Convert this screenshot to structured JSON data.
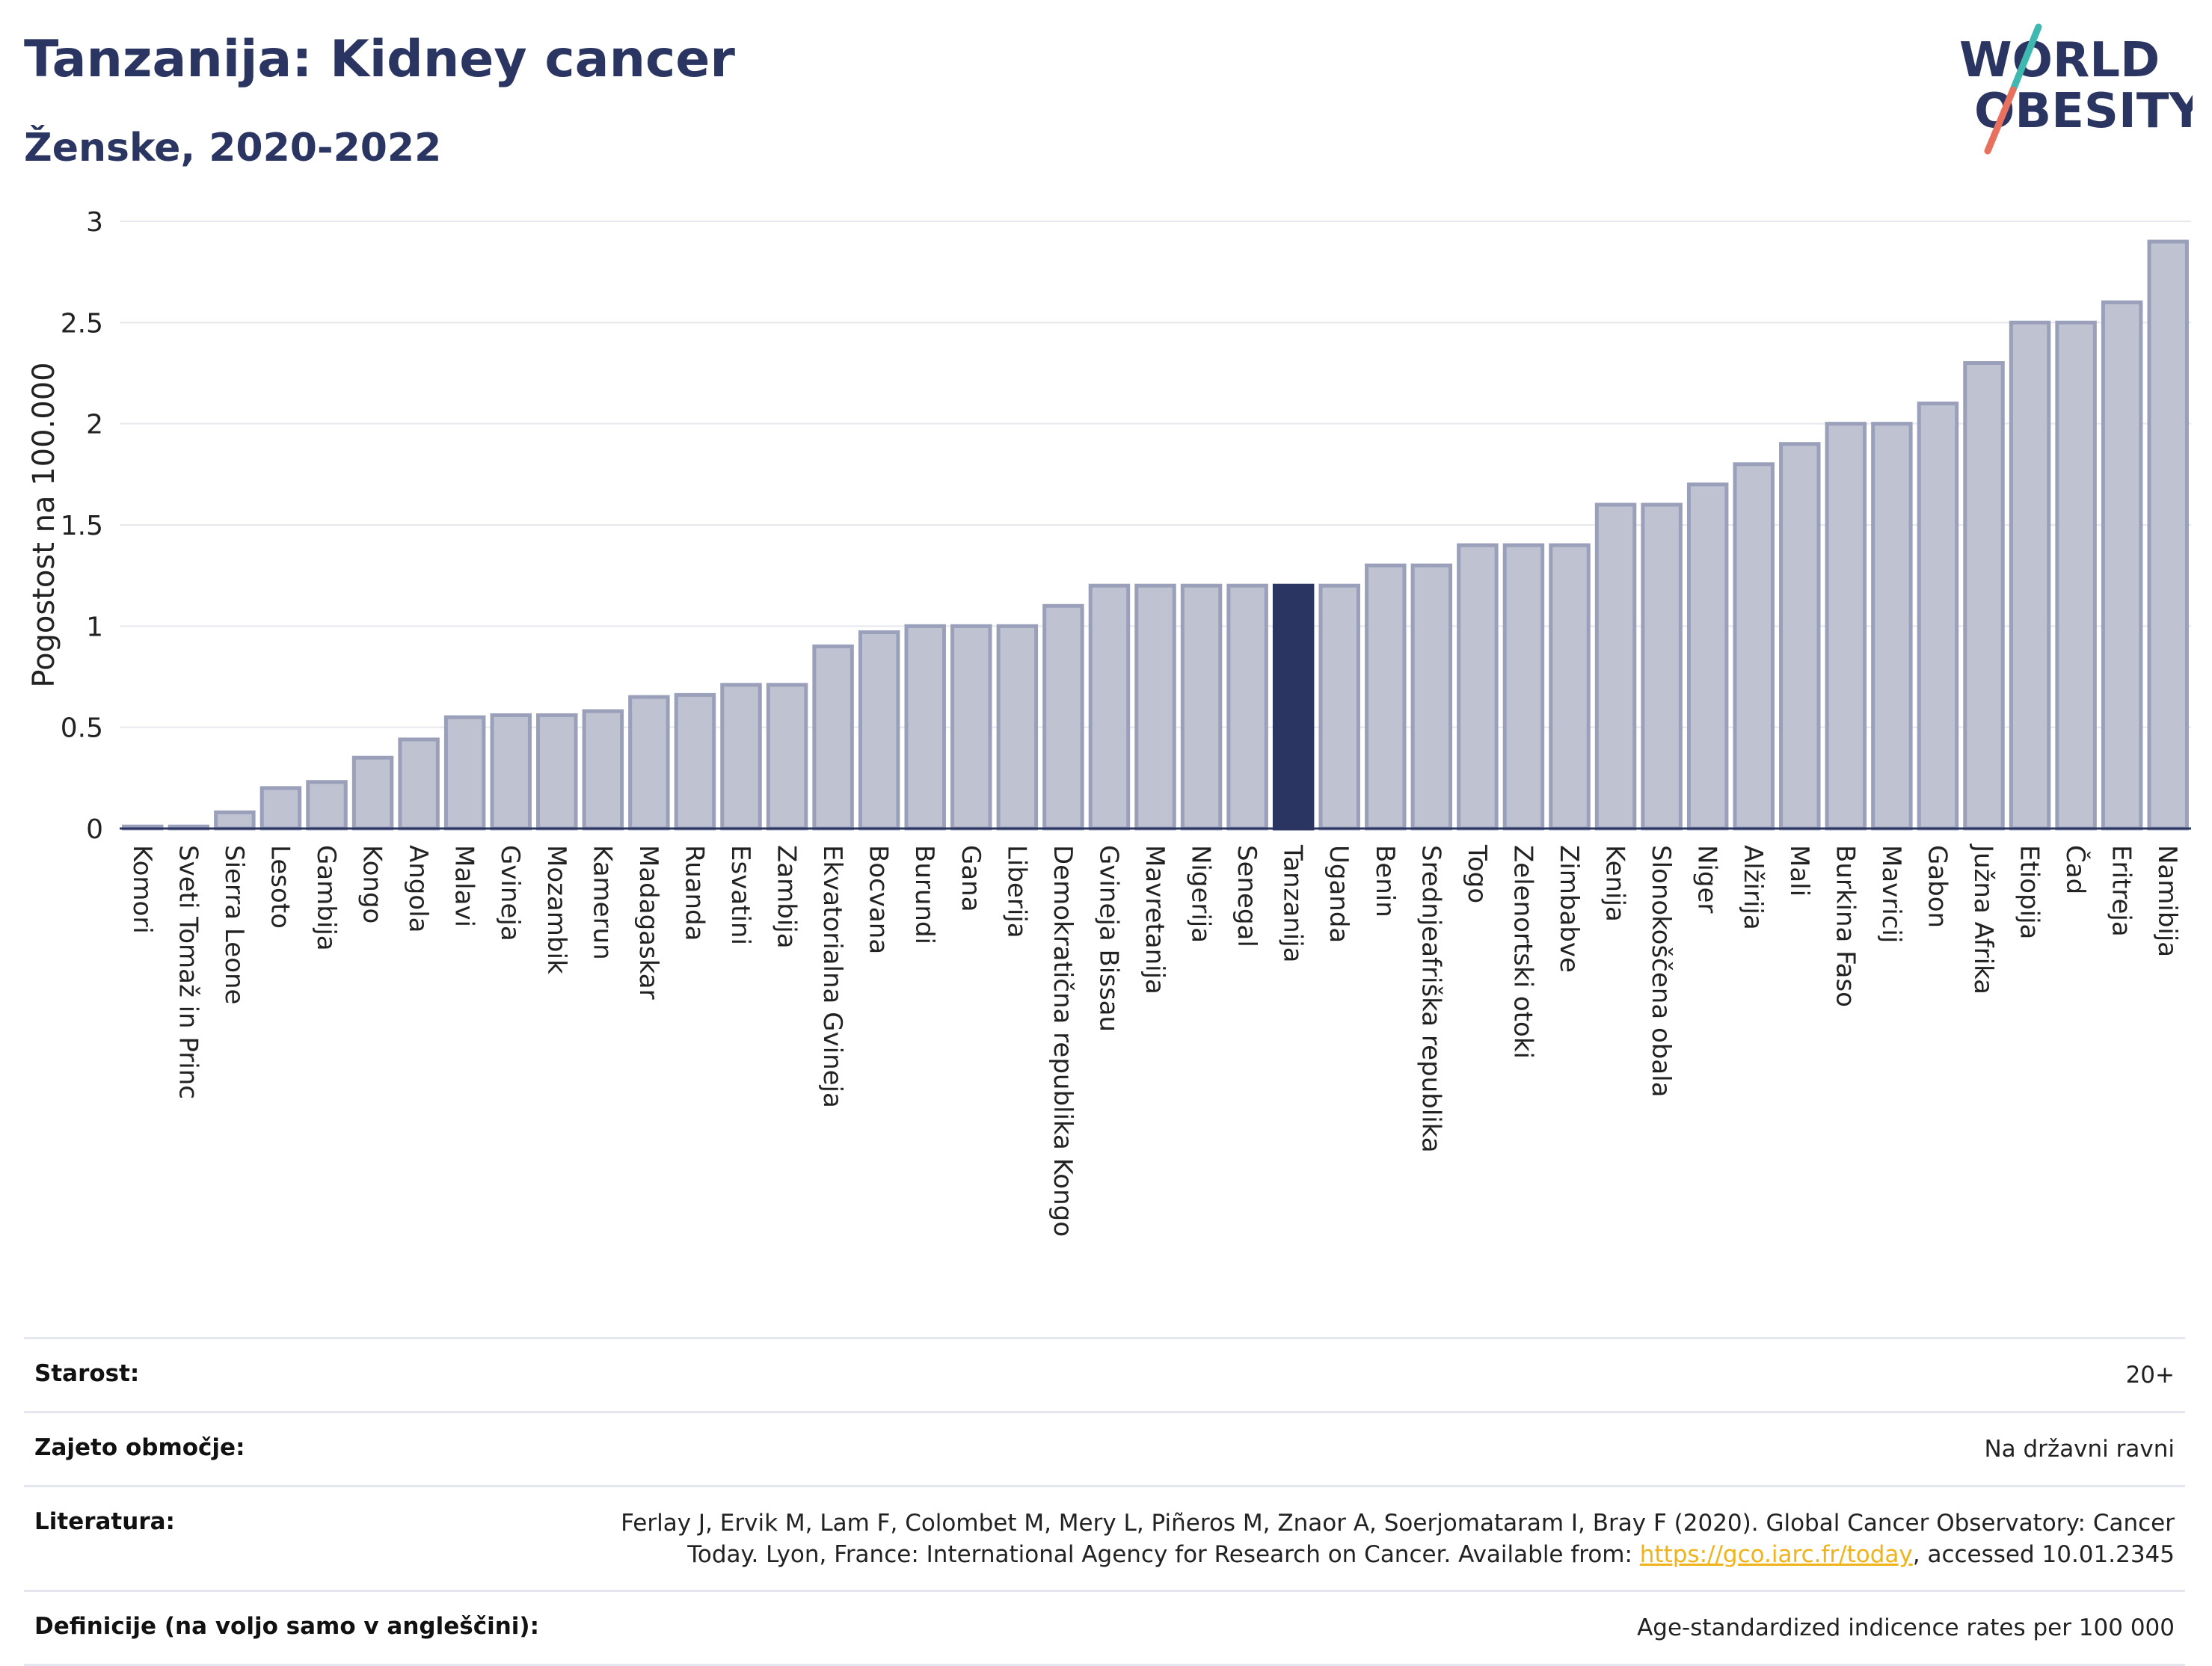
{
  "header": {
    "title": "Tanzanija: Kidney cancer",
    "subtitle": "Ženske, 2020-2022"
  },
  "logo": {
    "line1": "WORLD",
    "line2": "OBESITY"
  },
  "colors": {
    "bar": "#bfc2d0",
    "bar_stroke": "#9a9fba",
    "highlight": "#2b3561",
    "title": "#2b3561",
    "link": "#f0b31a"
  },
  "chart_data": {
    "type": "bar",
    "ylabel": "Pogostost na 100.000",
    "ylim": [
      0,
      3
    ],
    "yticks": [
      0,
      0.5,
      1,
      1.5,
      2,
      2.5,
      3
    ],
    "ytick_labels": [
      "0",
      "0.5",
      "1",
      "1.5",
      "2",
      "2.5",
      "3"
    ],
    "grid": true,
    "highlight": "Tanzanija",
    "categories": [
      "Komori",
      "Sveti Tomaž in Princ",
      "Sierra Leone",
      "Lesoto",
      "Gambija",
      "Kongo",
      "Angola",
      "Malavi",
      "Gvineja",
      "Mozambik",
      "Kamerun",
      "Madagaskar",
      "Ruanda",
      "Esvatini",
      "Zambija",
      "Ekvatorialna Gvineja",
      "Bocvana",
      "Burundi",
      "Gana",
      "Liberija",
      "Demokratična republika Kongo",
      "Gvineja Bissau",
      "Mavretanija",
      "Nigerija",
      "Senegal",
      "Tanzanija",
      "Uganda",
      "Benin",
      "Srednjeafriška republika",
      "Togo",
      "Zelenortski otoki",
      "Zimbabve",
      "Kenija",
      "Slonokoščena obala",
      "Niger",
      "Alžirija",
      "Mali",
      "Burkina Faso",
      "Mavricij",
      "Gabon",
      "Južna Afrika",
      "Etiopija",
      "Čad",
      "Eritreja",
      "Namibija"
    ],
    "values": [
      0.01,
      0.01,
      0.08,
      0.2,
      0.23,
      0.35,
      0.44,
      0.55,
      0.56,
      0.56,
      0.58,
      0.65,
      0.66,
      0.71,
      0.71,
      0.9,
      0.97,
      1.0,
      1.0,
      1.0,
      1.1,
      1.2,
      1.2,
      1.2,
      1.2,
      1.2,
      1.2,
      1.3,
      1.3,
      1.4,
      1.4,
      1.4,
      1.6,
      1.6,
      1.7,
      1.8,
      1.9,
      2.0,
      2.0,
      2.1,
      2.3,
      2.5,
      2.5,
      2.6,
      2.9
    ]
  },
  "info": [
    {
      "label": "Starost:",
      "value": "20+"
    },
    {
      "label": "Zajeto območje:",
      "value": "Na državni ravni"
    },
    {
      "label": "Literatura:",
      "value_pre": "Ferlay J, Ervik M, Lam F, Colombet M, Mery L, Piñeros M, Znaor A, Soerjomataram I, Bray F (2020). Global Cancer Observatory: Cancer Today. Lyon, France: International Agency for Research on Cancer. Available from: ",
      "link": "https://gco.iarc.fr/today",
      "value_post": ", accessed 10.01.2345"
    },
    {
      "label": "Definicije (na voljo samo v angleščini):",
      "value": "Age-standardized indicence rates per 100 000"
    }
  ]
}
